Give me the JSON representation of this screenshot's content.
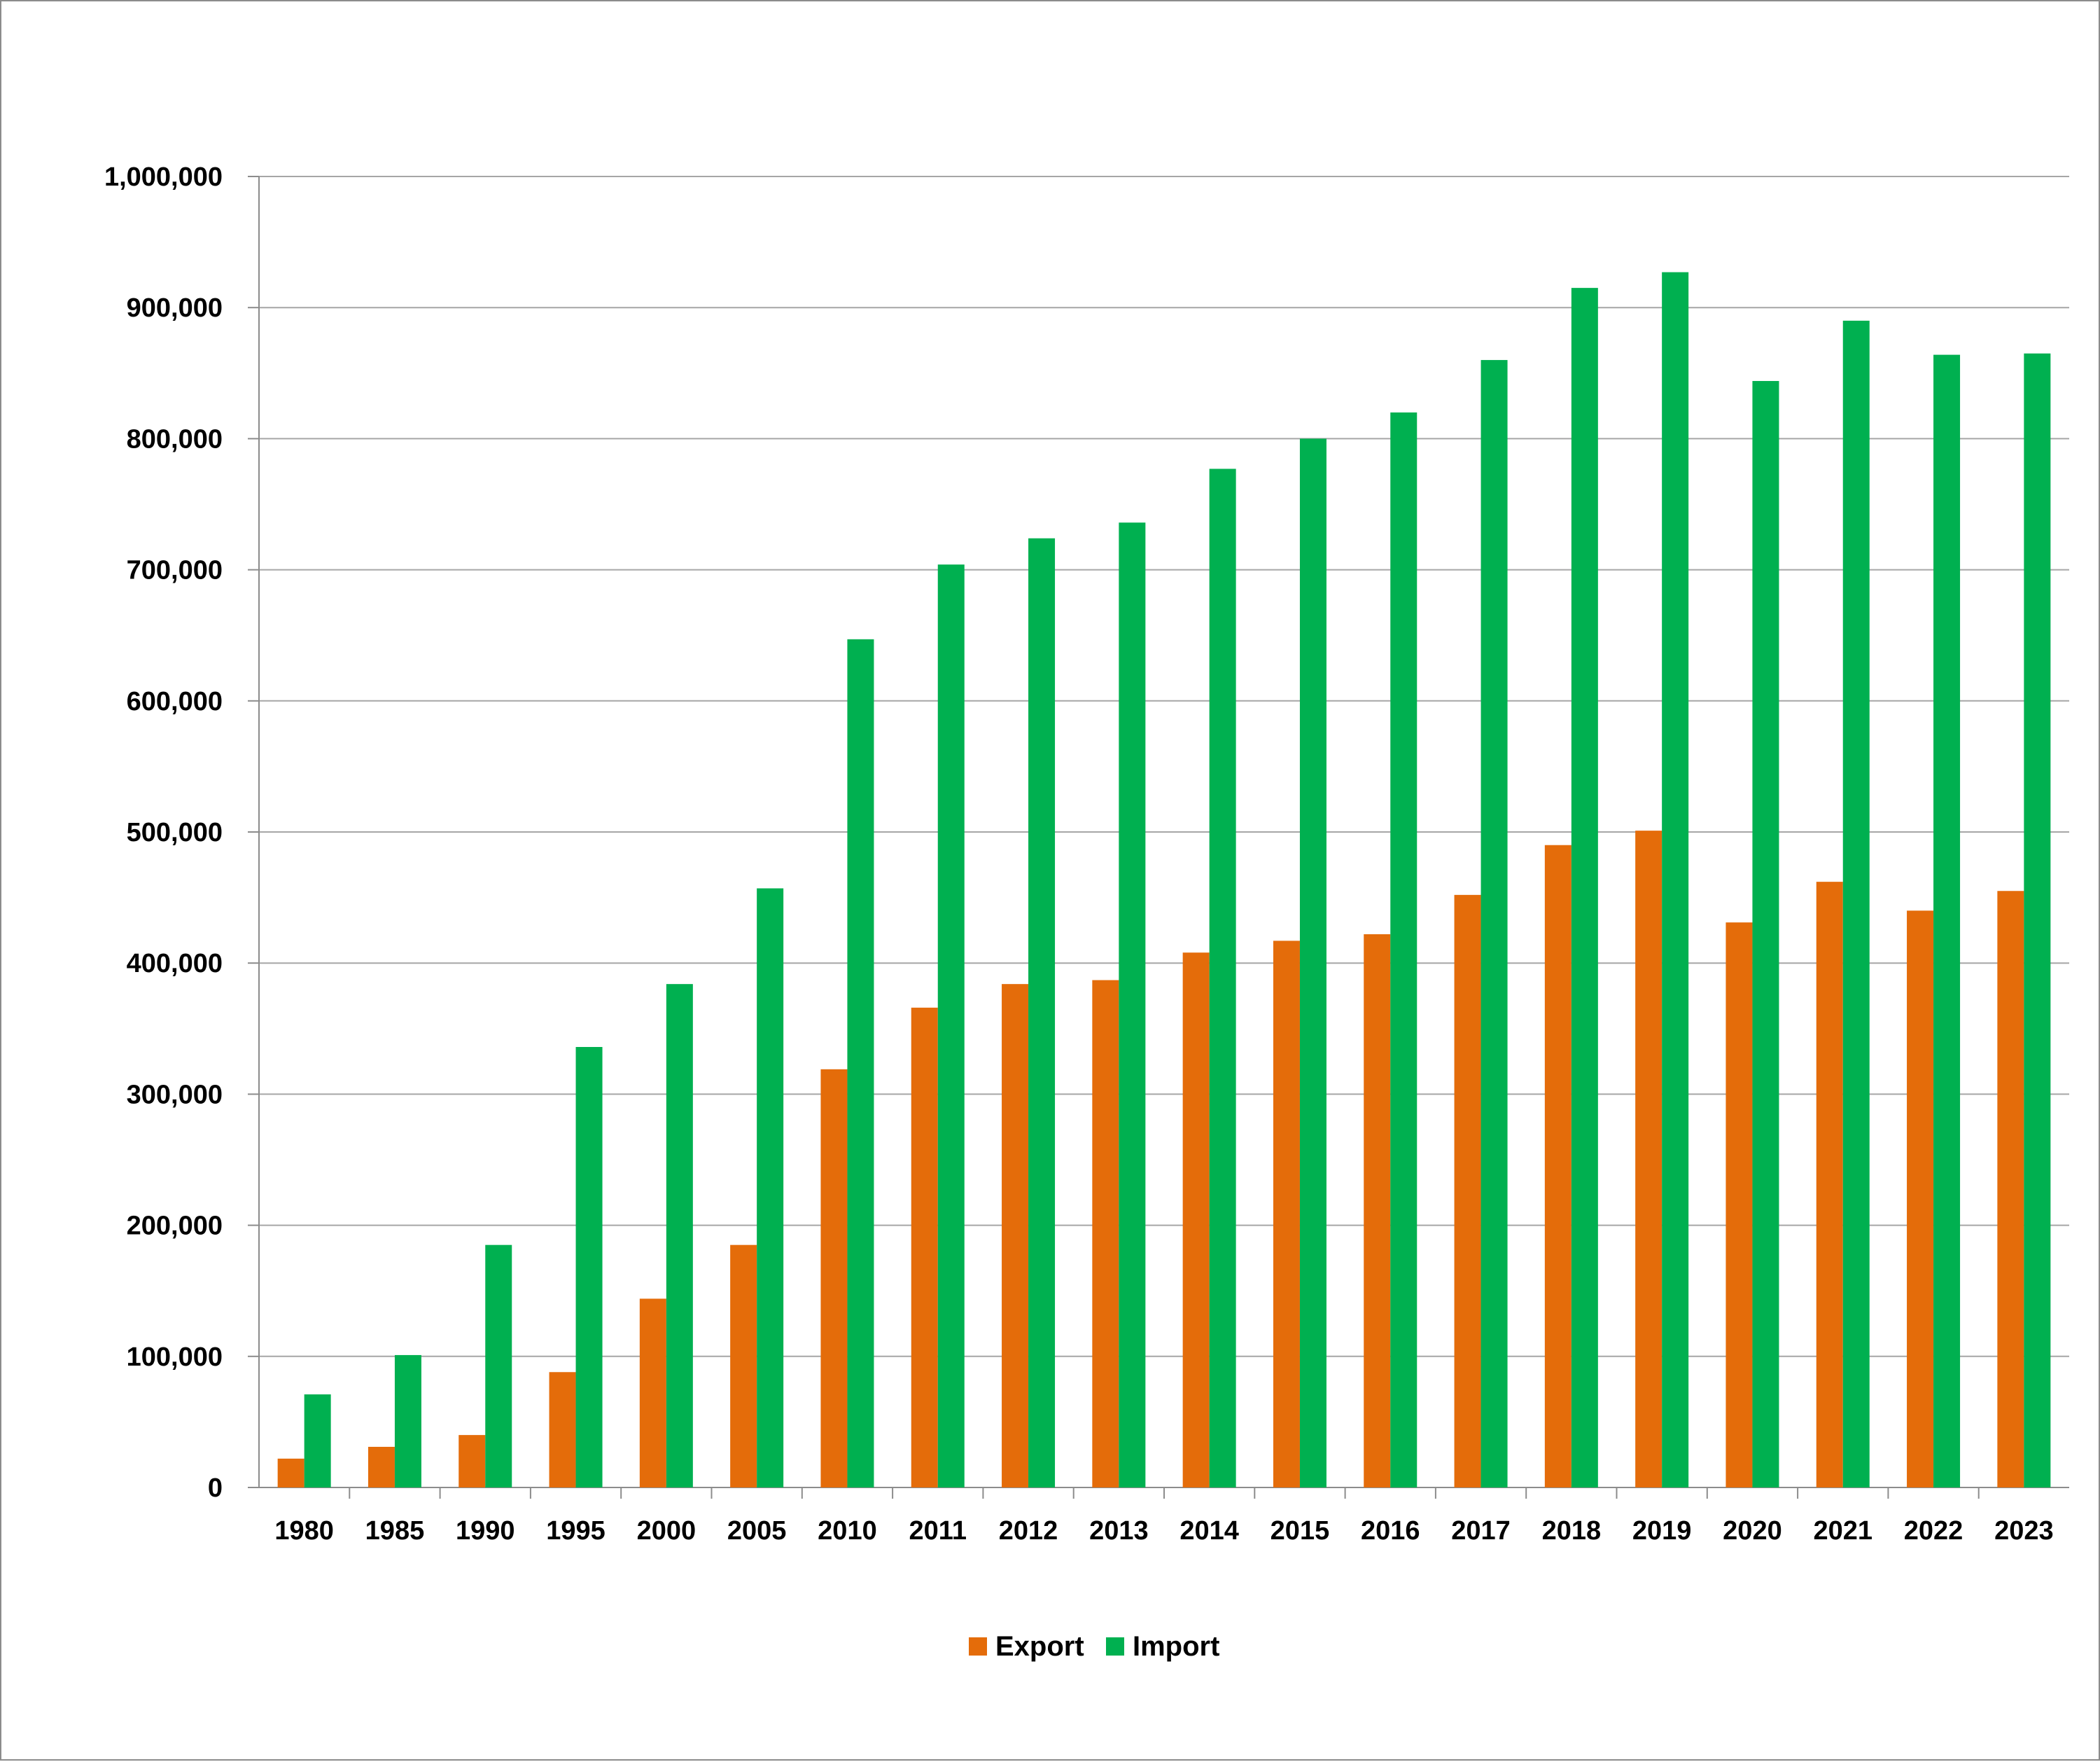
{
  "chart_data": {
    "type": "bar",
    "categories": [
      "1980",
      "1985",
      "1990",
      "1995",
      "2000",
      "2005",
      "2010",
      "2011",
      "2012",
      "2013",
      "2014",
      "2015",
      "2016",
      "2017",
      "2018",
      "2019",
      "2020",
      "2021",
      "2022",
      "2023"
    ],
    "series": [
      {
        "name": "Export",
        "color": "#e46c0a",
        "values": [
          22000,
          31000,
          40000,
          88000,
          144000,
          185000,
          319000,
          366000,
          384000,
          387000,
          408000,
          417000,
          422000,
          452000,
          490000,
          501000,
          431000,
          462000,
          440000,
          455000
        ]
      },
      {
        "name": "Import",
        "color": "#00b050",
        "values": [
          71000,
          101000,
          185000,
          336000,
          384000,
          457000,
          647000,
          704000,
          724000,
          736000,
          777000,
          800000,
          820000,
          860000,
          915000,
          927000,
          844000,
          890000,
          864000,
          865000
        ]
      }
    ],
    "title": "",
    "xlabel": "",
    "ylabel": "",
    "ylim": [
      0,
      1000000
    ],
    "yticks": [
      0,
      100000,
      200000,
      300000,
      400000,
      500000,
      600000,
      700000,
      800000,
      900000,
      1000000
    ],
    "ytick_labels": [
      "0",
      "100,000",
      "200,000",
      "300,000",
      "400,000",
      "500,000",
      "600,000",
      "700,000",
      "800,000",
      "900,000",
      "1,000,000"
    ],
    "grid": true,
    "legend": "bottom-center"
  }
}
